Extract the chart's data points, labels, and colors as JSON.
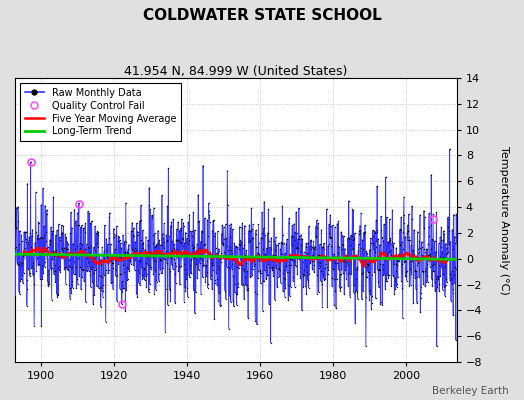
{
  "title": "COLDWATER STATE SCHOOL",
  "subtitle": "41.954 N, 84.999 W (United States)",
  "ylabel": "Temperature Anomaly (°C)",
  "watermark": "Berkeley Earth",
  "ylim": [
    -8,
    14
  ],
  "yticks": [
    -8,
    -6,
    -4,
    -2,
    0,
    2,
    4,
    6,
    8,
    10,
    12,
    14
  ],
  "xlim": [
    1893,
    2014
  ],
  "xticks": [
    1900,
    1920,
    1940,
    1960,
    1980,
    2000
  ],
  "start_year": 1893,
  "end_year": 2013,
  "seed": 17,
  "raw_color": "#3333ff",
  "stem_color": "#8888ff",
  "moving_avg_color": "#ff0000",
  "trend_color": "#00cc00",
  "qc_color": "#ff44ff",
  "background_color": "#e0e0e0",
  "plot_background": "#ffffff",
  "legend_labels": [
    "Raw Monthly Data",
    "Quality Control Fail",
    "Five Year Moving Average",
    "Long-Term Trend"
  ],
  "qc_points": [
    [
      1897.25,
      7.5
    ],
    [
      1910.5,
      4.2
    ],
    [
      1922.3,
      -3.5
    ],
    [
      2007.5,
      3.1
    ]
  ]
}
